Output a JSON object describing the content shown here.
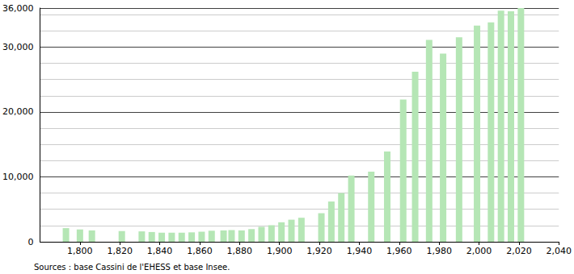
{
  "chart_data": {
    "type": "bar",
    "x": [
      1793,
      1800,
      1806,
      1821,
      1831,
      1836,
      1841,
      1846,
      1851,
      1856,
      1861,
      1866,
      1872,
      1876,
      1881,
      1886,
      1891,
      1896,
      1901,
      1906,
      1911,
      1921,
      1926,
      1931,
      1936,
      1946,
      1954,
      1962,
      1968,
      1975,
      1982,
      1990,
      1999,
      2006,
      2011,
      2016,
      2021
    ],
    "values": [
      2100,
      1900,
      1750,
      1650,
      1600,
      1500,
      1400,
      1400,
      1400,
      1450,
      1550,
      1700,
      1750,
      1800,
      1750,
      1950,
      2300,
      2550,
      3000,
      3400,
      3700,
      4400,
      6200,
      7500,
      10200,
      10800,
      13900,
      21900,
      26200,
      31100,
      29000,
      31500,
      33300,
      33800,
      35600,
      35500,
      36000
    ],
    "color": "#b5e6b5",
    "xlim": [
      1780,
      2040
    ],
    "xticks": [
      1800,
      1820,
      1840,
      1860,
      1880,
      1900,
      1920,
      1940,
      1960,
      1980,
      2000,
      2020,
      2040
    ],
    "ylim": [
      0,
      36000
    ],
    "yticks": [
      0,
      10000,
      20000,
      30000
    ],
    "grid": true,
    "annotations": [
      "Sources : base Cassini de l'EHESS et base Insee."
    ]
  }
}
